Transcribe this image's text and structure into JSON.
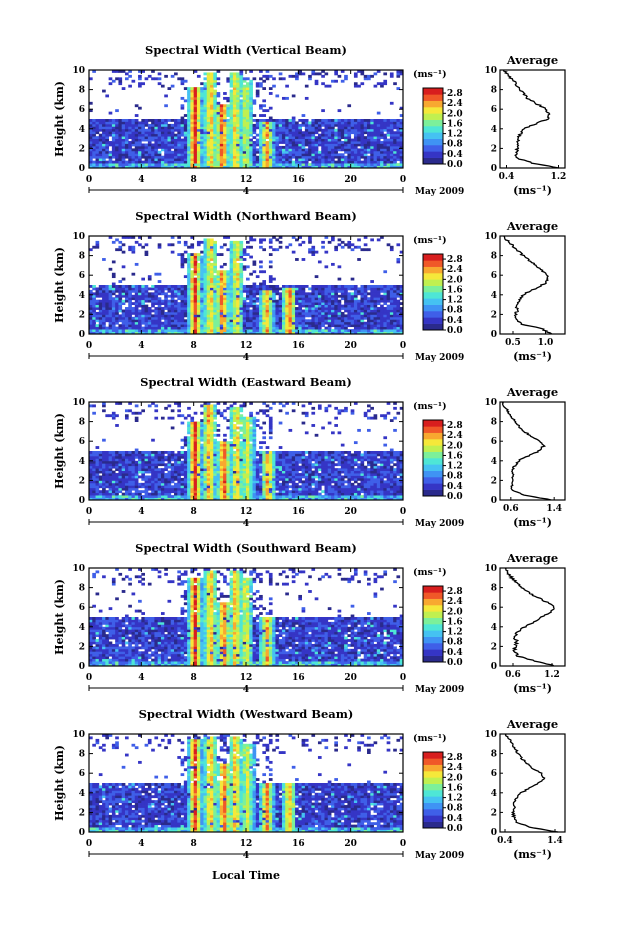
{
  "figure": {
    "month_label": "May 2009",
    "date_label": "4",
    "bottom_xlabel": "Local Time",
    "ylabel": "Height (km)",
    "cbar_unit": "(ms⁻¹)",
    "avg_title": "Average",
    "avg_xlabel": "(ms⁻¹)"
  },
  "colors": {
    "colormap": [
      "#2a2a8c",
      "#3535c5",
      "#3f5fe8",
      "#3f93f4",
      "#45c2f2",
      "#4ee6d6",
      "#7cf09a",
      "#c0f050",
      "#f5e83a",
      "#f8a830",
      "#f05828",
      "#d81e1e"
    ]
  },
  "chart_data": [
    {
      "type": "heatmap",
      "title": "Spectral Width (Vertical Beam)",
      "x_ticks": [
        "0",
        "4",
        "8",
        "12",
        "16",
        "20",
        "0"
      ],
      "y_ticks": [
        "0",
        "2",
        "4",
        "6",
        "8",
        "10"
      ],
      "xlim": [
        0,
        24
      ],
      "ylim": [
        0,
        10
      ],
      "cbar_ticks": [
        "0.0",
        "0.4",
        "0.8",
        "1.2",
        "1.6",
        "2.0",
        "2.4",
        "2.8"
      ],
      "cbar_range": [
        0,
        3.0
      ],
      "plumes": [
        {
          "t": 8.1,
          "top": 8.2,
          "v": 2.7
        },
        {
          "t": 9.3,
          "top": 9.8,
          "v": 2.2
        },
        {
          "t": 10.2,
          "top": 6.5,
          "v": 2.6
        },
        {
          "t": 11.2,
          "top": 9.7,
          "v": 2.0
        },
        {
          "t": 12.0,
          "top": 9.0,
          "v": 1.8
        },
        {
          "t": 13.6,
          "top": 4.8,
          "v": 2.3
        }
      ],
      "average": {
        "xticks": [
          "0.4",
          "1.2"
        ],
        "xlim": [
          0.3,
          1.3
        ],
        "profile": [
          [
            0.0,
            1.2
          ],
          [
            0.5,
            0.8
          ],
          [
            1.0,
            0.55
          ],
          [
            1.5,
            0.55
          ],
          [
            2.0,
            0.56
          ],
          [
            2.5,
            0.58
          ],
          [
            3.0,
            0.57
          ],
          [
            3.5,
            0.62
          ],
          [
            4.0,
            0.66
          ],
          [
            4.5,
            0.84
          ],
          [
            5.0,
            1.03
          ],
          [
            5.5,
            1.07
          ],
          [
            6.0,
            1.0
          ],
          [
            6.5,
            0.88
          ],
          [
            7.0,
            0.74
          ],
          [
            7.5,
            0.67
          ],
          [
            8.0,
            0.6
          ],
          [
            8.5,
            0.55
          ],
          [
            9.0,
            0.5
          ],
          [
            9.5,
            0.42
          ],
          [
            10.0,
            0.36
          ]
        ]
      }
    },
    {
      "type": "heatmap",
      "title": "Spectral Width (Northward Beam)",
      "x_ticks": [
        "0",
        "4",
        "8",
        "12",
        "16",
        "20",
        "0"
      ],
      "y_ticks": [
        "0",
        "2",
        "4",
        "6",
        "8",
        "10"
      ],
      "xlim": [
        0,
        24
      ],
      "ylim": [
        0,
        10
      ],
      "cbar_ticks": [
        "0.0",
        "0.4",
        "0.8",
        "1.2",
        "1.6",
        "2.0",
        "2.4",
        "2.8"
      ],
      "cbar_range": [
        0,
        3.0
      ],
      "plumes": [
        {
          "t": 8.1,
          "top": 8.2,
          "v": 2.6
        },
        {
          "t": 9.3,
          "top": 9.8,
          "v": 2.1
        },
        {
          "t": 10.2,
          "top": 6.5,
          "v": 2.5
        },
        {
          "t": 11.3,
          "top": 9.6,
          "v": 2.0
        },
        {
          "t": 13.6,
          "top": 4.5,
          "v": 2.2
        },
        {
          "t": 15.3,
          "top": 4.8,
          "v": 2.5
        }
      ],
      "average": {
        "xticks": [
          "0.5",
          "1.0"
        ],
        "xlim": [
          0.3,
          1.3
        ],
        "profile": [
          [
            0.0,
            1.1
          ],
          [
            0.5,
            0.95
          ],
          [
            1.0,
            0.65
          ],
          [
            1.5,
            0.55
          ],
          [
            2.0,
            0.54
          ],
          [
            2.5,
            0.57
          ],
          [
            3.0,
            0.55
          ],
          [
            3.5,
            0.6
          ],
          [
            4.0,
            0.65
          ],
          [
            4.5,
            0.8
          ],
          [
            5.0,
            0.95
          ],
          [
            5.5,
            1.05
          ],
          [
            6.0,
            1.02
          ],
          [
            6.5,
            0.95
          ],
          [
            7.0,
            0.86
          ],
          [
            7.5,
            0.74
          ],
          [
            8.0,
            0.66
          ],
          [
            8.5,
            0.58
          ],
          [
            9.0,
            0.5
          ],
          [
            9.5,
            0.42
          ],
          [
            10.0,
            0.36
          ]
        ]
      }
    },
    {
      "type": "heatmap",
      "title": "Spectral Width (Eastward Beam)",
      "x_ticks": [
        "0",
        "4",
        "8",
        "12",
        "16",
        "20",
        "0"
      ],
      "y_ticks": [
        "0",
        "2",
        "4",
        "6",
        "8",
        "10"
      ],
      "xlim": [
        0,
        24
      ],
      "ylim": [
        0,
        10
      ],
      "cbar_ticks": [
        "0.0",
        "0.4",
        "0.8",
        "1.2",
        "1.6",
        "2.0",
        "2.4",
        "2.8"
      ],
      "cbar_range": [
        0,
        3.0
      ],
      "plumes": [
        {
          "t": 8.1,
          "top": 8.0,
          "v": 2.7
        },
        {
          "t": 9.2,
          "top": 9.8,
          "v": 2.3
        },
        {
          "t": 10.3,
          "top": 6.0,
          "v": 2.6
        },
        {
          "t": 11.3,
          "top": 9.6,
          "v": 2.1
        },
        {
          "t": 12.1,
          "top": 8.6,
          "v": 1.8
        },
        {
          "t": 13.7,
          "top": 5.0,
          "v": 2.3
        }
      ],
      "average": {
        "xticks": [
          "0.6",
          "1.4"
        ],
        "xlim": [
          0.4,
          1.6
        ],
        "profile": [
          [
            0.0,
            1.35
          ],
          [
            0.5,
            0.85
          ],
          [
            1.0,
            0.62
          ],
          [
            1.5,
            0.62
          ],
          [
            2.0,
            0.62
          ],
          [
            2.5,
            0.66
          ],
          [
            3.0,
            0.62
          ],
          [
            3.5,
            0.68
          ],
          [
            4.0,
            0.74
          ],
          [
            4.5,
            0.92
          ],
          [
            5.0,
            1.12
          ],
          [
            5.5,
            1.2
          ],
          [
            6.0,
            1.12
          ],
          [
            6.5,
            0.98
          ],
          [
            7.0,
            0.84
          ],
          [
            7.5,
            0.75
          ],
          [
            8.0,
            0.68
          ],
          [
            8.5,
            0.62
          ],
          [
            9.0,
            0.55
          ],
          [
            9.5,
            0.48
          ],
          [
            10.0,
            0.44
          ]
        ]
      }
    },
    {
      "type": "heatmap",
      "title": "Spectral Width (Southward Beam)",
      "x_ticks": [
        "0",
        "4",
        "8",
        "12",
        "16",
        "20",
        "0"
      ],
      "y_ticks": [
        "0",
        "2",
        "4",
        "6",
        "8",
        "10"
      ],
      "xlim": [
        0,
        24
      ],
      "ylim": [
        0,
        10
      ],
      "cbar_ticks": [
        "0.0",
        "0.4",
        "0.8",
        "1.2",
        "1.6",
        "2.0",
        "2.4",
        "2.8"
      ],
      "cbar_range": [
        0,
        3.0
      ],
      "plumes": [
        {
          "t": 8.1,
          "top": 9.0,
          "v": 2.7
        },
        {
          "t": 9.3,
          "top": 9.8,
          "v": 2.2
        },
        {
          "t": 10.3,
          "top": 6.5,
          "v": 2.5
        },
        {
          "t": 11.2,
          "top": 9.8,
          "v": 2.2
        },
        {
          "t": 12.0,
          "top": 9.0,
          "v": 1.9
        },
        {
          "t": 13.6,
          "top": 5.0,
          "v": 2.2
        }
      ],
      "average": {
        "xticks": [
          "0.6",
          "1.2"
        ],
        "xlim": [
          0.4,
          1.4
        ],
        "profile": [
          [
            0.0,
            1.25
          ],
          [
            0.5,
            0.95
          ],
          [
            1.0,
            0.68
          ],
          [
            1.5,
            0.62
          ],
          [
            2.0,
            0.64
          ],
          [
            2.5,
            0.66
          ],
          [
            3.0,
            0.62
          ],
          [
            3.5,
            0.68
          ],
          [
            4.0,
            0.78
          ],
          [
            4.5,
            0.92
          ],
          [
            5.0,
            1.05
          ],
          [
            5.5,
            1.17
          ],
          [
            6.0,
            1.24
          ],
          [
            6.5,
            1.12
          ],
          [
            7.0,
            0.98
          ],
          [
            7.5,
            0.84
          ],
          [
            8.0,
            0.74
          ],
          [
            8.5,
            0.66
          ],
          [
            9.0,
            0.58
          ],
          [
            9.5,
            0.52
          ],
          [
            10.0,
            0.48
          ]
        ]
      }
    },
    {
      "type": "heatmap",
      "title": "Spectral Width (Westward Beam)",
      "x_ticks": [
        "0",
        "4",
        "8",
        "12",
        "16",
        "20",
        "0"
      ],
      "y_ticks": [
        "0",
        "2",
        "4",
        "6",
        "8",
        "10"
      ],
      "xlim": [
        0,
        24
      ],
      "ylim": [
        0,
        10
      ],
      "cbar_ticks": [
        "0.0",
        "0.4",
        "0.8",
        "1.2",
        "1.6",
        "2.0",
        "2.4",
        "2.8"
      ],
      "cbar_range": [
        0,
        3.0
      ],
      "plumes": [
        {
          "t": 8.1,
          "top": 9.5,
          "v": 2.6
        },
        {
          "t": 9.3,
          "top": 9.8,
          "v": 2.1
        },
        {
          "t": 10.3,
          "top": 7.0,
          "v": 2.5
        },
        {
          "t": 11.2,
          "top": 9.7,
          "v": 2.2
        },
        {
          "t": 12.1,
          "top": 9.0,
          "v": 1.8
        },
        {
          "t": 13.6,
          "top": 5.0,
          "v": 2.3
        },
        {
          "t": 15.3,
          "top": 5.0,
          "v": 2.2
        }
      ],
      "average": {
        "xticks": [
          "0.4",
          "1.4"
        ],
        "xlim": [
          0.3,
          1.6
        ],
        "profile": [
          [
            0.0,
            1.45
          ],
          [
            0.5,
            0.9
          ],
          [
            1.0,
            0.62
          ],
          [
            1.5,
            0.58
          ],
          [
            2.0,
            0.56
          ],
          [
            2.5,
            0.6
          ],
          [
            3.0,
            0.58
          ],
          [
            3.5,
            0.64
          ],
          [
            4.0,
            0.72
          ],
          [
            4.5,
            0.9
          ],
          [
            5.0,
            1.08
          ],
          [
            5.5,
            1.18
          ],
          [
            6.0,
            1.12
          ],
          [
            6.5,
            0.96
          ],
          [
            7.0,
            0.84
          ],
          [
            7.5,
            0.74
          ],
          [
            8.0,
            0.66
          ],
          [
            8.5,
            0.6
          ],
          [
            9.0,
            0.54
          ],
          [
            9.5,
            0.48
          ],
          [
            10.0,
            0.42
          ]
        ]
      }
    }
  ]
}
